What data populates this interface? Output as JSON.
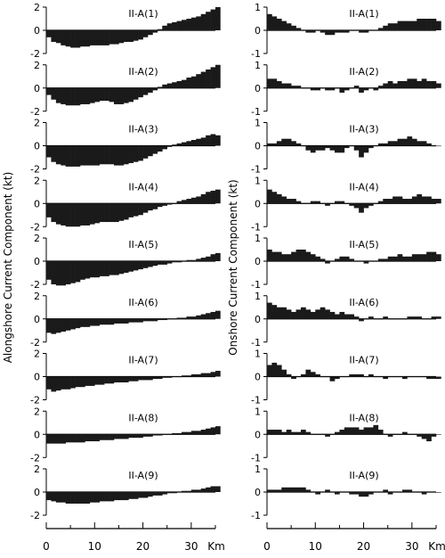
{
  "ylabels": {
    "left": "Alongshore Current Component (kt)",
    "right": "Onshore Current Component (kt)"
  },
  "xaxis": {
    "ticks": [
      0,
      10,
      20,
      30
    ],
    "tick_labels": [
      "0",
      "10",
      "20",
      "30"
    ],
    "unit": "Km"
  },
  "chart_data": [
    {
      "type": "bar",
      "column": "alongshore",
      "ylim": [
        -2,
        2
      ],
      "yticks": [
        -2,
        0,
        2
      ],
      "xlim": [
        0,
        35
      ],
      "panels": [
        {
          "label": "II-A(1)",
          "values": [
            -0.6,
            -1,
            -1.1,
            -1.3,
            -1.4,
            -1.5,
            -1.5,
            -1.4,
            -1.4,
            -1.3,
            -1.3,
            -1.3,
            -1.3,
            -1.2,
            -1.2,
            -1.1,
            -1,
            -1,
            -0.9,
            -0.8,
            -0.6,
            -0.4,
            -0.2,
            0.1,
            0.4,
            0.6,
            0.7,
            0.8,
            0.9,
            1,
            1.1,
            1.2,
            1.4,
            1.6,
            1.8,
            2
          ]
        },
        {
          "label": "II-A(2)",
          "values": [
            -0.6,
            -1,
            -1.3,
            -1.4,
            -1.5,
            -1.5,
            -1.5,
            -1.4,
            -1.4,
            -1.3,
            -1.2,
            -1.1,
            -1.1,
            -1.2,
            -1.4,
            -1.4,
            -1.3,
            -1.2,
            -1,
            -0.8,
            -0.6,
            -0.4,
            -0.2,
            0.1,
            0.3,
            0.4,
            0.5,
            0.6,
            0.7,
            0.9,
            1,
            1.2,
            1.4,
            1.6,
            1.8,
            2
          ]
        },
        {
          "label": "II-A(3)",
          "values": [
            -1,
            -1.4,
            -1.6,
            -1.7,
            -1.8,
            -1.8,
            -1.8,
            -1.7,
            -1.7,
            -1.7,
            -1.7,
            -1.6,
            -1.6,
            -1.6,
            -1.7,
            -1.7,
            -1.6,
            -1.5,
            -1.4,
            -1.3,
            -1.1,
            -0.9,
            -0.7,
            -0.5,
            -0.3,
            -0.1,
            0.1,
            0.2,
            0.3,
            0.4,
            0.5,
            0.6,
            0.7,
            0.9,
            1,
            0.9
          ]
        },
        {
          "label": "II-A(4)",
          "values": [
            -1.2,
            -1.6,
            -1.8,
            -1.9,
            -2,
            -2,
            -2,
            -1.9,
            -1.9,
            -1.8,
            -1.7,
            -1.6,
            -1.6,
            -1.6,
            -1.6,
            -1.5,
            -1.4,
            -1.2,
            -1.1,
            -1,
            -0.8,
            -0.6,
            -0.5,
            -0.3,
            -0.2,
            -0.1,
            0,
            0.2,
            0.3,
            0.4,
            0.5,
            0.6,
            0.8,
            1,
            1.1,
            1.2
          ]
        },
        {
          "label": "II-A(5)",
          "values": [
            -1.6,
            -2,
            -2.1,
            -2.1,
            -2,
            -1.9,
            -1.8,
            -1.6,
            -1.5,
            -1.4,
            -1.4,
            -1.3,
            -1.3,
            -1.2,
            -1.2,
            -1.1,
            -1,
            -0.9,
            -0.8,
            -0.7,
            -0.6,
            -0.5,
            -0.4,
            -0.3,
            -0.3,
            -0.2,
            -0.1,
            -0.1,
            0,
            0.1,
            0.1,
            0.2,
            0.3,
            0.4,
            0.6,
            0.7
          ]
        },
        {
          "label": "II-A(6)",
          "values": [
            -1.2,
            -1.3,
            -1.2,
            -1.1,
            -1,
            -0.9,
            -0.8,
            -0.7,
            -0.7,
            -0.6,
            -0.6,
            -0.5,
            -0.5,
            -0.5,
            -0.4,
            -0.4,
            -0.4,
            -0.3,
            -0.3,
            -0.3,
            -0.2,
            -0.2,
            -0.2,
            -0.1,
            -0.1,
            0,
            0,
            0.1,
            0.1,
            0.2,
            0.2,
            0.3,
            0.4,
            0.5,
            0.6,
            0.7
          ]
        },
        {
          "label": "II-A(7)",
          "values": [
            -1.1,
            -1.3,
            -1.2,
            -1.1,
            -1.1,
            -1,
            -0.9,
            -0.9,
            -0.8,
            -0.8,
            -0.7,
            -0.7,
            -0.6,
            -0.6,
            -0.5,
            -0.5,
            -0.5,
            -0.4,
            -0.4,
            -0.3,
            -0.3,
            -0.3,
            -0.2,
            -0.2,
            -0.1,
            -0.1,
            0,
            0,
            0.1,
            0.1,
            0.2,
            0.2,
            0.3,
            0.3,
            0.4,
            0.5
          ]
        },
        {
          "label": "II-A(8)",
          "values": [
            -0.8,
            -0.8,
            -0.8,
            -0.8,
            -0.7,
            -0.7,
            -0.7,
            -0.7,
            -0.6,
            -0.6,
            -0.6,
            -0.5,
            -0.5,
            -0.5,
            -0.4,
            -0.4,
            -0.4,
            -0.3,
            -0.3,
            -0.3,
            -0.2,
            -0.2,
            -0.1,
            -0.1,
            0,
            0,
            0.1,
            0.1,
            0.2,
            0.2,
            0.3,
            0.3,
            0.4,
            0.5,
            0.6,
            0.7
          ]
        },
        {
          "label": "II-A(9)",
          "values": [
            -0.7,
            -0.8,
            -0.9,
            -0.9,
            -1,
            -1,
            -1,
            -1,
            -1,
            -0.9,
            -0.9,
            -0.8,
            -0.8,
            -0.8,
            -0.7,
            -0.7,
            -0.7,
            -0.6,
            -0.6,
            -0.5,
            -0.5,
            -0.4,
            -0.3,
            -0.3,
            -0.2,
            -0.1,
            -0.1,
            0,
            0.1,
            0.1,
            0.2,
            0.2,
            0.3,
            0.4,
            0.5,
            0.5
          ]
        }
      ]
    },
    {
      "type": "bar",
      "column": "onshore",
      "ylim": [
        -1,
        1
      ],
      "yticks": [
        -1,
        0,
        1
      ],
      "xlim": [
        0,
        35
      ],
      "panels": [
        {
          "label": "II-A(1)",
          "values": [
            0.7,
            0.6,
            0.5,
            0.4,
            0.3,
            0.2,
            0.1,
            0,
            -0.1,
            -0.1,
            0,
            -0.1,
            -0.2,
            -0.2,
            -0.1,
            -0.1,
            -0.1,
            0,
            0,
            -0.1,
            -0.1,
            0,
            0,
            0.1,
            0.2,
            0.3,
            0.3,
            0.4,
            0.4,
            0.4,
            0.4,
            0.5,
            0.5,
            0.5,
            0.5,
            0.4
          ]
        },
        {
          "label": "II-A(2)",
          "values": [
            0.4,
            0.4,
            0.3,
            0.2,
            0.2,
            0.1,
            0.1,
            0,
            0,
            -0.1,
            -0.1,
            0,
            -0.1,
            -0.1,
            0,
            -0.2,
            -0.1,
            0,
            0.1,
            -0.2,
            -0.1,
            0,
            -0.1,
            0.1,
            0.2,
            0.3,
            0.2,
            0.3,
            0.3,
            0.4,
            0.4,
            0.3,
            0.4,
            0.3,
            0.3,
            0.2
          ]
        },
        {
          "label": "II-A(3)",
          "values": [
            0.1,
            0.1,
            0.2,
            0.3,
            0.3,
            0.2,
            0.1,
            0,
            -0.2,
            -0.3,
            -0.2,
            -0.2,
            -0.1,
            -0.2,
            -0.3,
            -0.3,
            -0.1,
            0,
            -0.2,
            -0.5,
            -0.3,
            -0.1,
            0,
            0.1,
            0.1,
            0.2,
            0.2,
            0.3,
            0.3,
            0.4,
            0.3,
            0.2,
            0.2,
            0.1,
            0,
            0
          ]
        },
        {
          "label": "II-A(4)",
          "values": [
            0.6,
            0.5,
            0.4,
            0.3,
            0.2,
            0.2,
            0.1,
            0,
            0,
            0.1,
            0.1,
            0,
            -0.1,
            0,
            0.1,
            0.1,
            0,
            -0.1,
            -0.2,
            -0.4,
            -0.2,
            -0.1,
            0,
            0.1,
            0.2,
            0.2,
            0.3,
            0.3,
            0.2,
            0.2,
            0.3,
            0.4,
            0.3,
            0.3,
            0.2,
            0.2
          ]
        },
        {
          "label": "II-A(5)",
          "values": [
            0.5,
            0.4,
            0.4,
            0.3,
            0.3,
            0.4,
            0.5,
            0.5,
            0.4,
            0.3,
            0.2,
            0.1,
            -0.1,
            0,
            0.1,
            0.2,
            0.2,
            0.1,
            0,
            0,
            -0.1,
            0,
            0,
            0.1,
            0.1,
            0.2,
            0.2,
            0.3,
            0.2,
            0.2,
            0.3,
            0.3,
            0.3,
            0.4,
            0.4,
            0.3
          ]
        },
        {
          "label": "II-A(6)",
          "values": [
            0.7,
            0.6,
            0.5,
            0.5,
            0.4,
            0.3,
            0.4,
            0.5,
            0.4,
            0.3,
            0.4,
            0.5,
            0.4,
            0.3,
            0.2,
            0.3,
            0.2,
            0.2,
            0.1,
            -0.1,
            0,
            0.1,
            0,
            0,
            0.1,
            0,
            0,
            0,
            0,
            0.1,
            0.1,
            0.1,
            0,
            0,
            0.1,
            0.1
          ]
        },
        {
          "label": "II-A(7)",
          "values": [
            0.5,
            0.6,
            0.5,
            0.3,
            0.1,
            -0.1,
            0,
            0.1,
            0.3,
            0.2,
            0.1,
            0,
            0,
            -0.2,
            -0.1,
            0,
            0,
            0.1,
            0.1,
            0.1,
            0,
            0.1,
            0,
            0,
            -0.1,
            0,
            0,
            0,
            -0.1,
            0,
            0,
            0,
            0,
            -0.1,
            -0.1,
            -0.1
          ]
        },
        {
          "label": "II-A(8)",
          "values": [
            0.2,
            0.2,
            0.2,
            0.1,
            0.2,
            0.1,
            0.1,
            0.2,
            0.1,
            0,
            0,
            0,
            -0.1,
            0,
            0.1,
            0.2,
            0.3,
            0.3,
            0.3,
            0.2,
            0.3,
            0.3,
            0.4,
            0.2,
            0,
            -0.1,
            0,
            0,
            0.1,
            0,
            0,
            -0.1,
            -0.2,
            -0.3,
            -0.1,
            0
          ]
        },
        {
          "label": "II-A(9)",
          "values": [
            0.1,
            0.1,
            0.1,
            0.2,
            0.2,
            0.2,
            0.2,
            0.2,
            0.1,
            0,
            -0.1,
            0,
            0.1,
            0,
            -0.1,
            0,
            0,
            -0.1,
            -0.1,
            -0.2,
            -0.2,
            -0.1,
            0,
            0,
            0.1,
            -0.1,
            0,
            0,
            0.1,
            0.1,
            0,
            0,
            -0.1,
            0,
            0,
            0
          ]
        }
      ]
    }
  ]
}
